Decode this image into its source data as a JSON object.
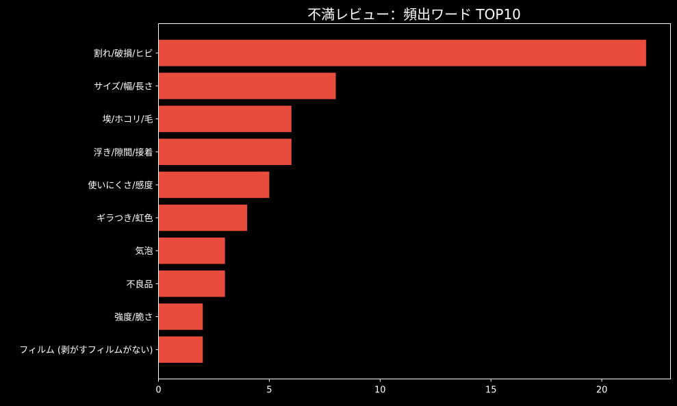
{
  "chart_data": {
    "type": "bar",
    "orientation": "horizontal",
    "title": "不満レビュー：頻出ワード TOP10",
    "xlabel": "",
    "ylabel": "",
    "categories": [
      "割れ/破損/ヒビ",
      "サイズ/幅/長さ",
      "埃/ホコリ/毛",
      "浮き/隙間/接着",
      "使いにくさ/感度",
      "ギラつき/虹色",
      "気泡",
      "不良品",
      "強度/脆さ",
      "フィルム (剥がすフィルムがない)"
    ],
    "values": [
      22,
      8,
      6,
      6,
      5,
      4,
      3,
      3,
      2,
      2
    ],
    "xlim": [
      0,
      23.1
    ],
    "xticks": [
      0,
      5,
      10,
      15,
      20
    ],
    "grid": false,
    "legend": "none",
    "colors": {
      "bar": "#e74c3c",
      "background": "#000000",
      "text": "#ffffff",
      "axes": "#ffffff"
    }
  }
}
